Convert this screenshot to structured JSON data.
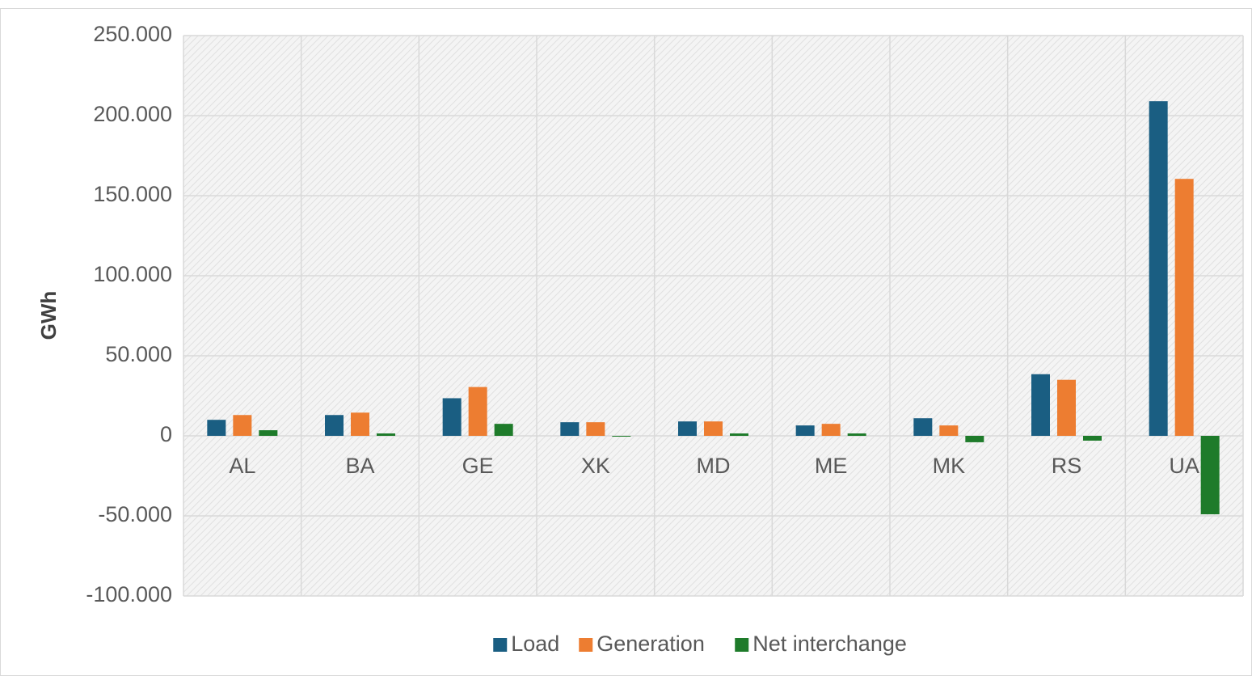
{
  "chart_data": {
    "type": "bar",
    "y_label": "GWh",
    "categories": [
      "AL",
      "BA",
      "GE",
      "XK",
      "MD",
      "ME",
      "MK",
      "RS",
      "UA"
    ],
    "series": [
      {
        "name": "Load",
        "color": "#1a5e82",
        "values": [
          10000,
          13000,
          23500,
          8500,
          9000,
          6500,
          11000,
          38500,
          209000
        ]
      },
      {
        "name": "Generation",
        "color": "#ed7d31",
        "values": [
          13000,
          14500,
          30500,
          8500,
          9000,
          7500,
          6500,
          35000,
          160500
        ]
      },
      {
        "name": "Net interchange",
        "color": "#1e7b2a",
        "values": [
          3500,
          1500,
          7500,
          -500,
          1500,
          1500,
          -4000,
          -3000,
          -49000
        ]
      }
    ],
    "ylim": [
      -100000,
      250000
    ],
    "yticks": [
      {
        "value": -100000,
        "label": "-100.000"
      },
      {
        "value": -50000,
        "label": "-50.000"
      },
      0,
      {
        "value": 50000,
        "label": "50.000"
      },
      {
        "value": 100000,
        "label": "100.000"
      },
      {
        "value": 150000,
        "label": "150.000"
      },
      {
        "value": 200000,
        "label": "200.000"
      },
      {
        "value": 250000,
        "label": "250.000"
      }
    ],
    "grid": true,
    "legend": "bottom"
  }
}
